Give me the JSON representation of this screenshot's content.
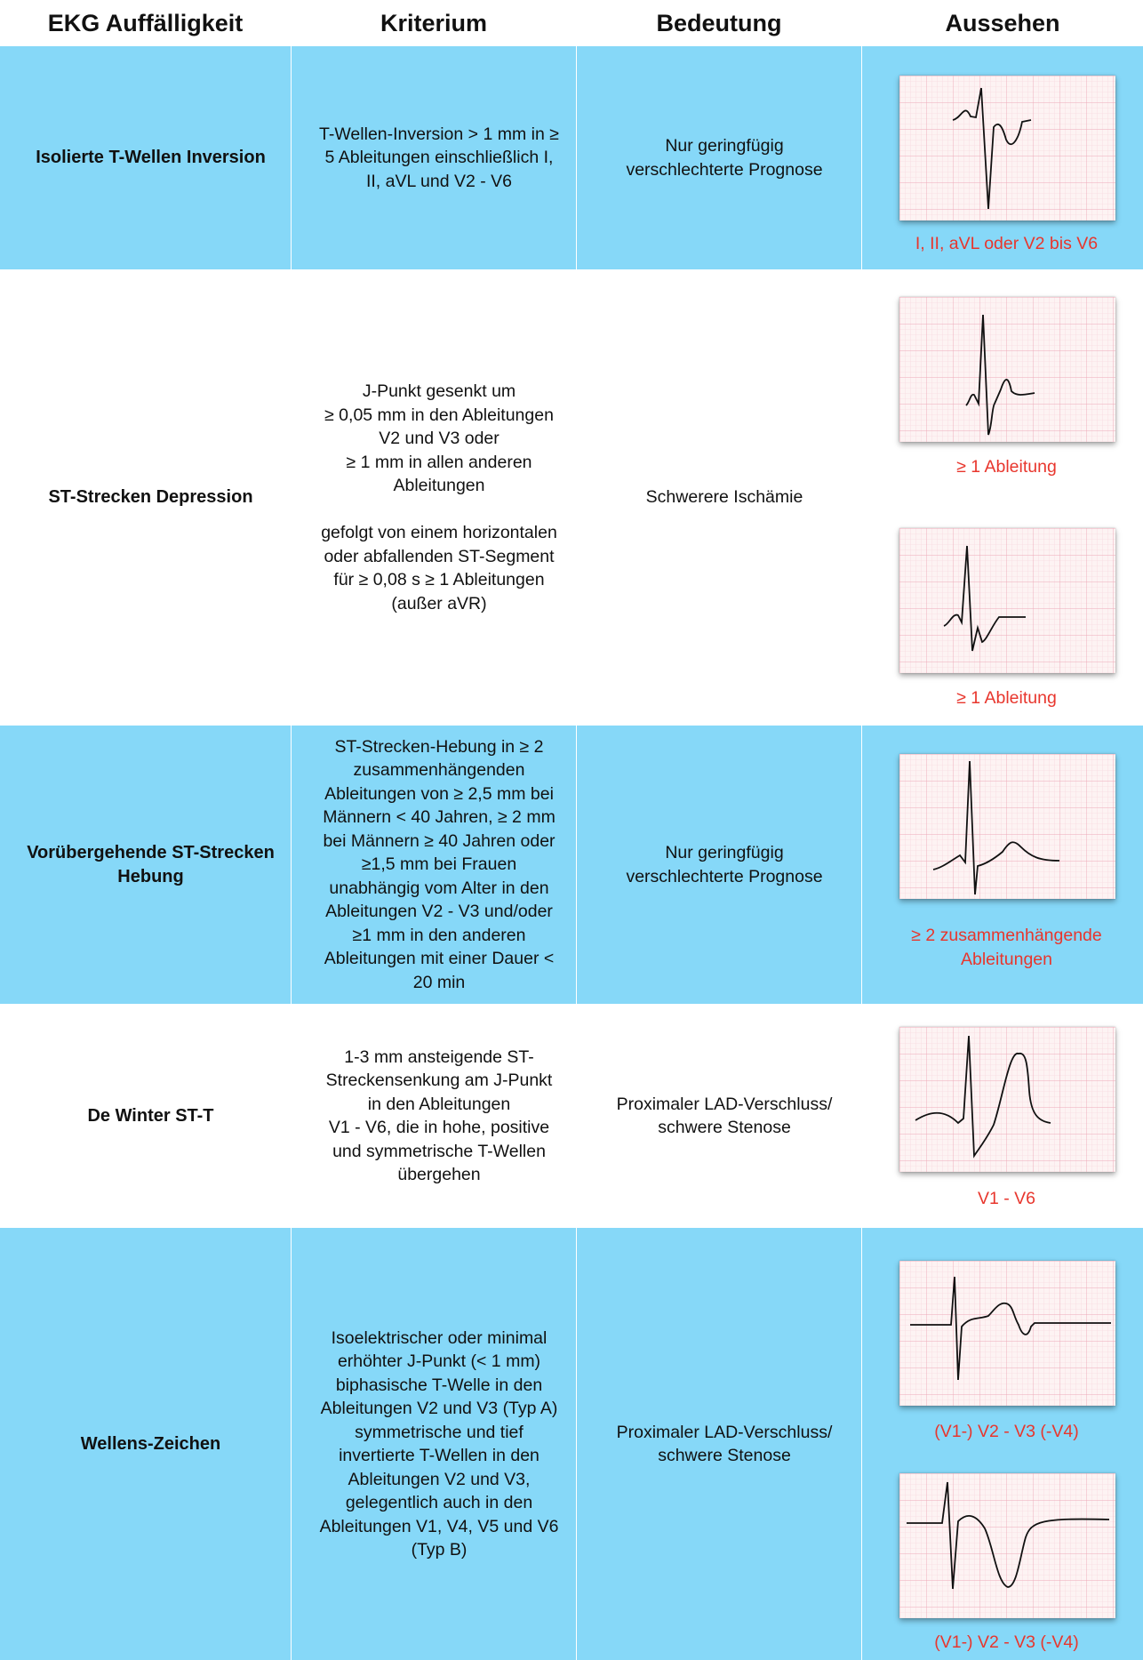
{
  "header": {
    "col1": "EKG Auffälligkeit",
    "col2": "Kriterium",
    "col3": "Bedeutung",
    "col4": "Aussehen"
  },
  "colors": {
    "row_blue": "#86d8f8",
    "label_red": "#e8362d",
    "ecg_paper": "#fdf3f3",
    "grid": "#f0b8c4"
  },
  "rows": [
    {
      "name": "Isolierte T-Wellen Inversion",
      "criterion": "T-Wellen-Inversion > 1 mm in ≥\n5 Ableitungen einschließlich I,\nII, aVL und V2 - V6",
      "meaning": "Nur geringfügig\nverschlechterte Prognose",
      "images": [
        {
          "icon": "ecg-t-wave-inversion",
          "caption": "I, II, aVL oder V2 bis V6"
        }
      ]
    },
    {
      "name": "ST-Strecken Depression",
      "criterion": "J-Punkt gesenkt um\n≥ 0,05 mm in den Ableitungen\nV2 und V3 oder\n≥ 1 mm in allen anderen\nAbleitungen\n\ngefolgt von einem horizontalen\noder abfallenden ST-Segment\nfür ≥ 0,08 s ≥ 1 Ableitungen\n(außer aVR)",
      "meaning": "Schwerere Ischämie",
      "images": [
        {
          "icon": "ecg-st-depression-upsloping",
          "caption": "≥ 1 Ableitung"
        },
        {
          "icon": "ecg-st-depression-horizontal",
          "caption": "≥ 1 Ableitung"
        }
      ]
    },
    {
      "name": "Vorübergehende ST-Strecken\nHebung",
      "criterion": "ST-Strecken-Hebung in ≥ 2\nzusammenhängenden\nAbleitungen von ≥ 2,5 mm bei\nMännern < 40 Jahren, ≥ 2 mm\nbei Männern ≥ 40 Jahren oder\n≥1,5 mm bei Frauen\nunabhängig vom Alter in den\nAbleitungen V2 - V3 und/oder\n≥1 mm in den anderen\nAbleitungen mit einer Dauer <\n20 min",
      "meaning": "Nur geringfügig\nverschlechterte Prognose",
      "images": [
        {
          "icon": "ecg-st-elevation",
          "caption": "≥ 2 zusammenhängende\nAbleitungen"
        }
      ]
    },
    {
      "name": "De Winter ST-T",
      "criterion": "1-3 mm ansteigende ST-\nStreckensenkung am J-Punkt\nin den Ableitungen\nV1 - V6, die in hohe, positive\nund symmetrische T-Wellen\nübergehen",
      "meaning": "Proximaler LAD-Verschluss/\nschwere Stenose",
      "images": [
        {
          "icon": "ecg-de-winter",
          "caption": "V1 - V6"
        }
      ]
    },
    {
      "name": "Wellens-Zeichen",
      "criterion": "Isoelektrischer oder minimal\nerhöhter J-Punkt (< 1 mm)\nbiphasische T-Welle in den\nAbleitungen V2 und V3 (Typ A)\nsymmetrische und tief\ninvertierte T-Wellen in den\nAbleitungen V2 und V3,\ngelegentlich auch in den\nAbleitungen V1, V4, V5 und V6\n(Typ B)",
      "meaning": "Proximaler LAD-Verschluss/\nschwere Stenose",
      "images": [
        {
          "icon": "ecg-wellens-type-a",
          "caption": "(V1-) V2 - V3 (-V4)"
        },
        {
          "icon": "ecg-wellens-type-b",
          "caption": "(V1-) V2 - V3 (-V4)"
        }
      ]
    }
  ]
}
